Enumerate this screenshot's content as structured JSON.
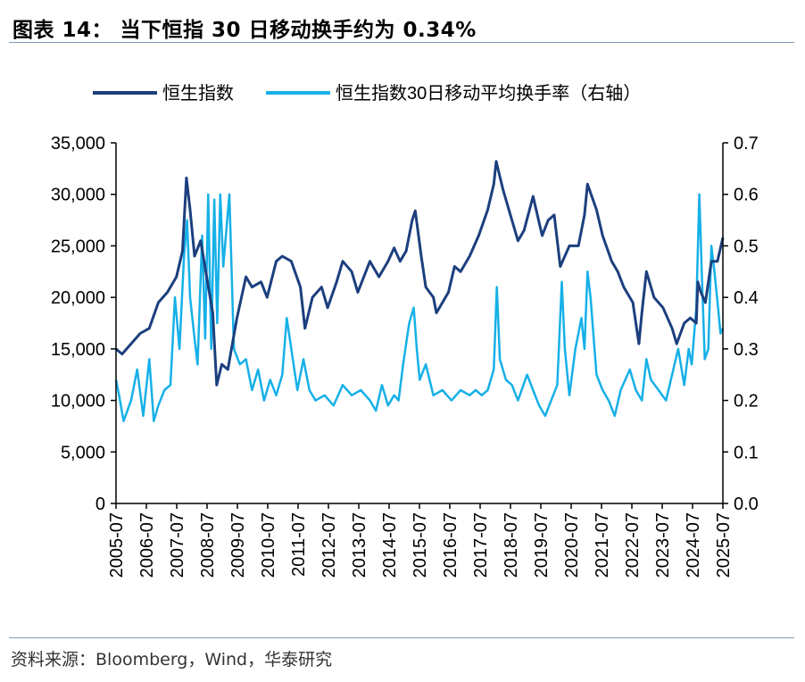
{
  "header": {
    "title": "图表 14： 当下恒指 30 日移动换手约为 0.34%"
  },
  "footer": {
    "source": "资料来源：Bloomberg，Wind，华泰研究"
  },
  "colors": {
    "hsi": "#1c3f7e",
    "turnover": "#16b0e8",
    "axis": "#000000",
    "rule": "#7f9bb5"
  },
  "chart_data": {
    "type": "line",
    "title": "当下恒指 30 日移动换手约为 0.34%",
    "categories": [
      "2005-07",
      "2006-07",
      "2007-07",
      "2008-07",
      "2009-07",
      "2010-07",
      "2011-07",
      "2012-07",
      "2013-07",
      "2014-07",
      "2015-07",
      "2016-07",
      "2017-07",
      "2018-07",
      "2019-07",
      "2020-07",
      "2021-07",
      "2022-07",
      "2023-07",
      "2024-07",
      "2025-07"
    ],
    "y_left": {
      "min": 0,
      "max": 35000,
      "step": 5000,
      "ticks": [
        "0",
        "5,000",
        "10,000",
        "15,000",
        "20,000",
        "25,000",
        "30,000",
        "35,000"
      ]
    },
    "y_right": {
      "min": 0,
      "max": 0.7,
      "step": 0.1,
      "ticks": [
        "0.0",
        "0.1",
        "0.2",
        "0.3",
        "0.4",
        "0.5",
        "0.6",
        "0.7"
      ]
    },
    "legend": {
      "placement": "top-center"
    },
    "series": [
      {
        "name": "恒生指数",
        "axis": "left",
        "points": [
          [
            2005.5,
            15000
          ],
          [
            2005.7,
            14500
          ],
          [
            2006.0,
            15500
          ],
          [
            2006.3,
            16500
          ],
          [
            2006.6,
            17000
          ],
          [
            2006.9,
            19500
          ],
          [
            2007.2,
            20500
          ],
          [
            2007.5,
            22000
          ],
          [
            2007.7,
            24500
          ],
          [
            2007.83,
            31600
          ],
          [
            2007.95,
            28500
          ],
          [
            2008.1,
            24000
          ],
          [
            2008.3,
            25500
          ],
          [
            2008.5,
            22000
          ],
          [
            2008.7,
            18500
          ],
          [
            2008.83,
            11500
          ],
          [
            2009.0,
            13500
          ],
          [
            2009.2,
            13000
          ],
          [
            2009.5,
            18000
          ],
          [
            2009.8,
            22000
          ],
          [
            2010.0,
            21000
          ],
          [
            2010.3,
            21500
          ],
          [
            2010.5,
            20000
          ],
          [
            2010.8,
            23500
          ],
          [
            2011.0,
            24000
          ],
          [
            2011.3,
            23500
          ],
          [
            2011.6,
            21000
          ],
          [
            2011.75,
            17000
          ],
          [
            2012.0,
            20000
          ],
          [
            2012.3,
            21000
          ],
          [
            2012.5,
            19000
          ],
          [
            2012.8,
            21500
          ],
          [
            2013.0,
            23500
          ],
          [
            2013.3,
            22500
          ],
          [
            2013.5,
            20500
          ],
          [
            2013.9,
            23500
          ],
          [
            2014.2,
            22000
          ],
          [
            2014.5,
            23500
          ],
          [
            2014.7,
            24800
          ],
          [
            2014.9,
            23500
          ],
          [
            2015.1,
            24500
          ],
          [
            2015.3,
            27500
          ],
          [
            2015.4,
            28400
          ],
          [
            2015.6,
            24000
          ],
          [
            2015.75,
            21000
          ],
          [
            2016.0,
            20000
          ],
          [
            2016.1,
            18500
          ],
          [
            2016.5,
            20500
          ],
          [
            2016.7,
            23000
          ],
          [
            2016.9,
            22500
          ],
          [
            2017.2,
            24000
          ],
          [
            2017.5,
            26000
          ],
          [
            2017.8,
            28500
          ],
          [
            2018.0,
            31000
          ],
          [
            2018.08,
            33200
          ],
          [
            2018.3,
            30500
          ],
          [
            2018.5,
            28500
          ],
          [
            2018.8,
            25500
          ],
          [
            2019.0,
            26500
          ],
          [
            2019.3,
            29800
          ],
          [
            2019.6,
            26000
          ],
          [
            2019.8,
            27500
          ],
          [
            2020.0,
            28000
          ],
          [
            2020.2,
            23000
          ],
          [
            2020.5,
            25000
          ],
          [
            2020.8,
            25000
          ],
          [
            2021.0,
            28000
          ],
          [
            2021.1,
            31000
          ],
          [
            2021.4,
            28500
          ],
          [
            2021.6,
            26000
          ],
          [
            2021.9,
            23500
          ],
          [
            2022.1,
            22500
          ],
          [
            2022.3,
            21000
          ],
          [
            2022.6,
            19500
          ],
          [
            2022.8,
            15500
          ],
          [
            2022.9,
            18500
          ],
          [
            2023.05,
            22500
          ],
          [
            2023.3,
            20000
          ],
          [
            2023.6,
            19000
          ],
          [
            2023.9,
            17000
          ],
          [
            2024.05,
            15500
          ],
          [
            2024.3,
            17500
          ],
          [
            2024.5,
            18000
          ],
          [
            2024.7,
            17500
          ],
          [
            2024.75,
            21500
          ],
          [
            2024.85,
            20500
          ],
          [
            2025.0,
            19500
          ],
          [
            2025.2,
            23500
          ],
          [
            2025.4,
            23500
          ],
          [
            2025.58,
            25800
          ]
        ]
      },
      {
        "name": "恒生指数30日移动平均换手率（右轴）",
        "axis": "right",
        "points": [
          [
            2005.5,
            0.24
          ],
          [
            2005.6,
            0.21
          ],
          [
            2005.75,
            0.16
          ],
          [
            2006.0,
            0.2
          ],
          [
            2006.2,
            0.26
          ],
          [
            2006.4,
            0.17
          ],
          [
            2006.6,
            0.28
          ],
          [
            2006.75,
            0.16
          ],
          [
            2006.9,
            0.19
          ],
          [
            2007.1,
            0.22
          ],
          [
            2007.3,
            0.23
          ],
          [
            2007.45,
            0.4
          ],
          [
            2007.6,
            0.3
          ],
          [
            2007.75,
            0.48
          ],
          [
            2007.85,
            0.55
          ],
          [
            2007.95,
            0.4
          ],
          [
            2008.1,
            0.32
          ],
          [
            2008.2,
            0.27
          ],
          [
            2008.35,
            0.52
          ],
          [
            2008.45,
            0.32
          ],
          [
            2008.55,
            0.6
          ],
          [
            2008.65,
            0.3
          ],
          [
            2008.75,
            0.59
          ],
          [
            2008.85,
            0.35
          ],
          [
            2008.95,
            0.6
          ],
          [
            2009.05,
            0.46
          ],
          [
            2009.25,
            0.6
          ],
          [
            2009.4,
            0.3
          ],
          [
            2009.6,
            0.27
          ],
          [
            2009.8,
            0.28
          ],
          [
            2010.0,
            0.22
          ],
          [
            2010.2,
            0.26
          ],
          [
            2010.4,
            0.2
          ],
          [
            2010.6,
            0.24
          ],
          [
            2010.8,
            0.21
          ],
          [
            2011.0,
            0.25
          ],
          [
            2011.15,
            0.36
          ],
          [
            2011.3,
            0.3
          ],
          [
            2011.5,
            0.22
          ],
          [
            2011.7,
            0.28
          ],
          [
            2011.9,
            0.22
          ],
          [
            2012.1,
            0.2
          ],
          [
            2012.4,
            0.21
          ],
          [
            2012.7,
            0.19
          ],
          [
            2013.0,
            0.23
          ],
          [
            2013.3,
            0.21
          ],
          [
            2013.6,
            0.22
          ],
          [
            2013.9,
            0.2
          ],
          [
            2014.1,
            0.18
          ],
          [
            2014.3,
            0.23
          ],
          [
            2014.5,
            0.19
          ],
          [
            2014.7,
            0.21
          ],
          [
            2014.85,
            0.2
          ],
          [
            2015.0,
            0.27
          ],
          [
            2015.2,
            0.35
          ],
          [
            2015.35,
            0.38
          ],
          [
            2015.45,
            0.3
          ],
          [
            2015.55,
            0.24
          ],
          [
            2015.75,
            0.27
          ],
          [
            2016.0,
            0.21
          ],
          [
            2016.3,
            0.22
          ],
          [
            2016.6,
            0.2
          ],
          [
            2016.9,
            0.22
          ],
          [
            2017.2,
            0.21
          ],
          [
            2017.4,
            0.22
          ],
          [
            2017.6,
            0.21
          ],
          [
            2017.8,
            0.22
          ],
          [
            2018.0,
            0.26
          ],
          [
            2018.1,
            0.42
          ],
          [
            2018.2,
            0.28
          ],
          [
            2018.4,
            0.24
          ],
          [
            2018.6,
            0.23
          ],
          [
            2018.8,
            0.2
          ],
          [
            2019.1,
            0.25
          ],
          [
            2019.3,
            0.22
          ],
          [
            2019.5,
            0.19
          ],
          [
            2019.7,
            0.17
          ],
          [
            2019.9,
            0.2
          ],
          [
            2020.1,
            0.23
          ],
          [
            2020.25,
            0.43
          ],
          [
            2020.35,
            0.3
          ],
          [
            2020.5,
            0.21
          ],
          [
            2020.7,
            0.3
          ],
          [
            2020.9,
            0.36
          ],
          [
            2021.0,
            0.3
          ],
          [
            2021.1,
            0.45
          ],
          [
            2021.2,
            0.4
          ],
          [
            2021.4,
            0.25
          ],
          [
            2021.6,
            0.22
          ],
          [
            2021.8,
            0.2
          ],
          [
            2022.0,
            0.17
          ],
          [
            2022.2,
            0.22
          ],
          [
            2022.5,
            0.26
          ],
          [
            2022.7,
            0.22
          ],
          [
            2022.9,
            0.2
          ],
          [
            2023.05,
            0.28
          ],
          [
            2023.2,
            0.24
          ],
          [
            2023.45,
            0.22
          ],
          [
            2023.7,
            0.2
          ],
          [
            2023.9,
            0.25
          ],
          [
            2024.1,
            0.3
          ],
          [
            2024.3,
            0.23
          ],
          [
            2024.45,
            0.3
          ],
          [
            2024.55,
            0.27
          ],
          [
            2024.7,
            0.38
          ],
          [
            2024.8,
            0.6
          ],
          [
            2024.88,
            0.45
          ],
          [
            2024.98,
            0.28
          ],
          [
            2025.1,
            0.3
          ],
          [
            2025.2,
            0.5
          ],
          [
            2025.3,
            0.45
          ],
          [
            2025.42,
            0.38
          ],
          [
            2025.5,
            0.33
          ],
          [
            2025.58,
            0.34
          ]
        ]
      }
    ]
  }
}
